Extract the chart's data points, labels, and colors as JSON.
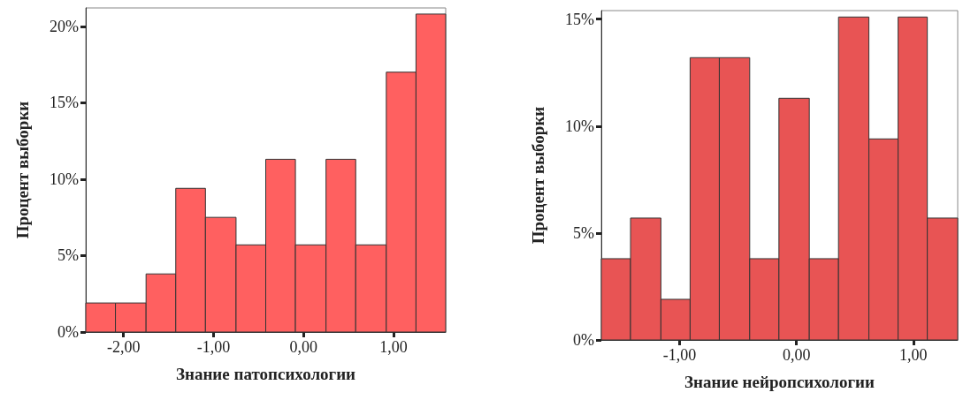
{
  "chart_data": [
    {
      "type": "histogram",
      "xlabel": "Знание патопсихологии",
      "ylabel": "Процент выборки",
      "color": "#ff6060",
      "bins": [
        -2.42,
        -2.09,
        -1.75,
        -1.42,
        -1.09,
        -0.75,
        -0.42,
        -0.09,
        0.25,
        0.58,
        0.92,
        1.25,
        1.58
      ],
      "values": [
        1.9,
        1.9,
        3.8,
        9.4,
        7.5,
        5.7,
        11.3,
        5.7,
        11.3,
        5.7,
        17.0,
        20.8
      ],
      "xlim": [
        -2.42,
        1.58
      ],
      "xticks": [
        {
          "value": -2,
          "label": "-2,00"
        },
        {
          "value": -1,
          "label": "-1,00"
        },
        {
          "value": 0,
          "label": "0,00"
        },
        {
          "value": 1,
          "label": "1,00"
        }
      ],
      "ylim": [
        0,
        21.2
      ],
      "yticks": [
        {
          "value": 0,
          "label": "0%"
        },
        {
          "value": 5,
          "label": "5%"
        },
        {
          "value": 10,
          "label": "10%"
        },
        {
          "value": 15,
          "label": "15%"
        },
        {
          "value": 20,
          "label": "20%"
        }
      ],
      "grid": false
    },
    {
      "type": "histogram",
      "xlabel": "Знание нейропсихологии",
      "ylabel": "Процент выборки",
      "color": "#e85454",
      "bins": [
        -1.67,
        -1.42,
        -1.16,
        -0.91,
        -0.66,
        -0.4,
        -0.15,
        0.11,
        0.36,
        0.62,
        0.87,
        1.12,
        1.38
      ],
      "values": [
        3.8,
        5.7,
        1.9,
        13.2,
        13.2,
        3.8,
        11.3,
        3.8,
        15.1,
        9.4,
        15.1,
        5.7
      ],
      "xlim": [
        -1.67,
        1.38
      ],
      "xticks": [
        {
          "value": -1,
          "label": "-1,00"
        },
        {
          "value": 0,
          "label": "0,00"
        },
        {
          "value": 1,
          "label": "1,00"
        }
      ],
      "ylim": [
        0,
        15.4
      ],
      "yticks": [
        {
          "value": 0,
          "label": "0%"
        },
        {
          "value": 5,
          "label": "5%"
        },
        {
          "value": 10,
          "label": "10%"
        },
        {
          "value": 15,
          "label": "15%"
        }
      ],
      "grid": false
    }
  ]
}
